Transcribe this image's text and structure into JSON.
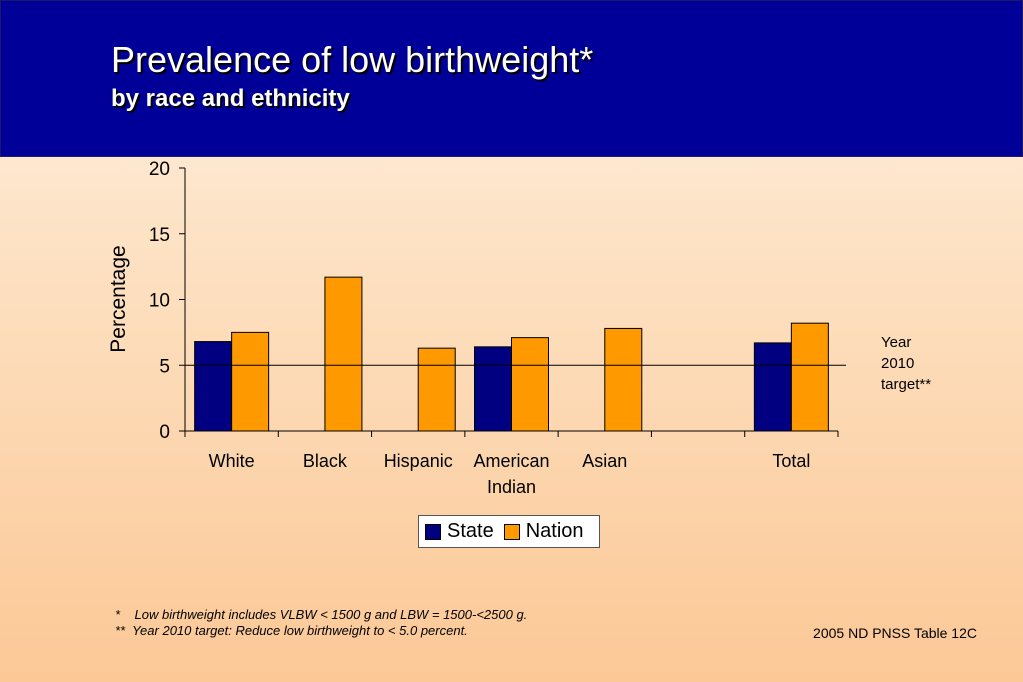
{
  "slide": {
    "title": "Prevalence of low birthweight*",
    "subtitle": "by race and ethnicity",
    "target_note": "Year\n2010\ntarget**",
    "footnote_1": "*    Low birthweight includes VLBW < 1500 g and LBW = 1500-<2500 g.",
    "footnote_2": "**  Year 2010 target: Reduce low birthweight to < 5.0 percent.",
    "source": "2005 ND PNSS Table 12C"
  },
  "colors": {
    "header_background": "#000099",
    "state": "#000080",
    "nation": "#ff9900"
  },
  "chart_data": {
    "type": "bar",
    "ylabel": "Percentage",
    "ylim": [
      0,
      20
    ],
    "yticks": [
      0,
      5,
      10,
      15,
      20
    ],
    "grid": false,
    "legend_position": "bottom",
    "categories": [
      "White",
      "Black",
      "Hispanic",
      "American\nIndian",
      "Asian",
      "",
      "Total"
    ],
    "series": [
      {
        "name": "State",
        "values": [
          6.8,
          null,
          null,
          6.4,
          null,
          null,
          6.7
        ]
      },
      {
        "name": "Nation",
        "values": [
          7.5,
          11.7,
          6.3,
          7.1,
          7.8,
          null,
          8.2
        ]
      }
    ],
    "reference_line": {
      "value": 5.0
    }
  }
}
